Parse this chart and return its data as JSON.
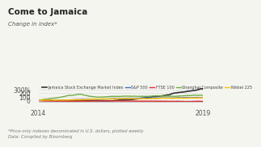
{
  "title": "Come to Jamaica",
  "subtitle": "Change in index*",
  "footnote1": "*Price-only indexes denominated in U.S. dollars, plotted weekly",
  "footnote2": "Data: Compiled by Bloomberg",
  "xlim": [
    2014,
    2019
  ],
  "ylim": [
    -50,
    340
  ],
  "yticks": [
    0,
    100,
    200,
    300
  ],
  "ytick_labels": [
    "0",
    "100",
    "200",
    "300%"
  ],
  "xticks": [
    2014,
    2019
  ],
  "legend": [
    {
      "label": "Jamaica Stock Exchange Market Index",
      "color": "#333333",
      "lw": 1.2
    },
    {
      "label": "S&P 500",
      "color": "#4472C4",
      "lw": 1.0
    },
    {
      "label": "FTSE 100",
      "color": "#E03030",
      "lw": 1.0
    },
    {
      "label": "Shanghai Composite",
      "color": "#70AD47",
      "lw": 1.0
    },
    {
      "label": "Nikkei 225",
      "color": "#FFC000",
      "lw": 1.0
    }
  ],
  "background_color": "#F5F5F0",
  "grid_color": "#DDDDDD"
}
